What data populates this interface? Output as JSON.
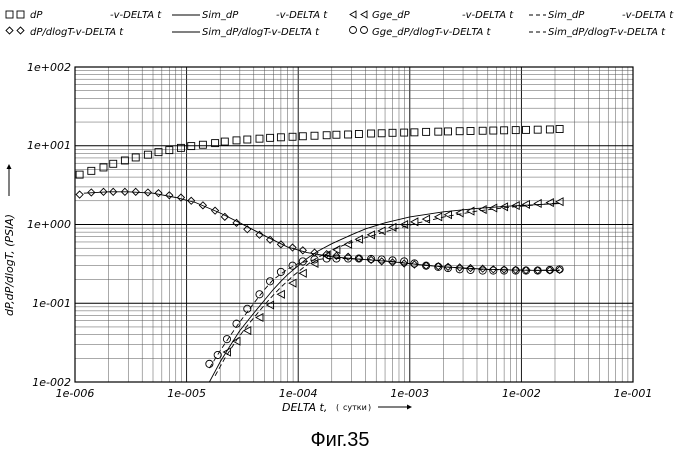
{
  "legend": [
    {
      "label": "dP",
      "rel": "-v-DELTA t"
    },
    {
      "label": "dP/dlogT-v-DELTA t",
      "rel": ""
    },
    {
      "label": "Sim_dP",
      "rel": "-v-DELTA t"
    },
    {
      "label": "Sim_dP/dlogT-v-DELTA t",
      "rel": ""
    },
    {
      "label": "Gge_dP",
      "rel": "-v-DELTA t"
    },
    {
      "label": "Gge_dP/dlogT-v-DELTA t",
      "rel": ""
    },
    {
      "label": "Sim_dP",
      "rel": "-v-DELTA t"
    },
    {
      "label": "Sim_dP/dlogT-v-DELTA t",
      "rel": ""
    }
  ],
  "caption": "Фиг.35",
  "chart_data": {
    "type": "scatter",
    "xscale": "log",
    "yscale": "log",
    "xlim": [
      1e-06,
      0.1
    ],
    "ylim": [
      0.01,
      100.0
    ],
    "grid": true,
    "legend_position": "top",
    "xlabel_prefix": "DELTA t,",
    "xlabel_unit": "сутки",
    "ylabel": "dP,dP/dlogT, (PSIA)",
    "x_ticks": [
      "1e-006",
      "1e-005",
      "1e-004",
      "1e-003",
      "1e-002",
      "1e-001"
    ],
    "y_ticks": [
      "1e-002",
      "1e-001",
      "1e+000",
      "1e+001",
      "1e+002"
    ],
    "series": [
      {
        "name": "dP",
        "marker": "square",
        "role": "measured",
        "x": [
          1.1e-06,
          1.4e-06,
          1.8e-06,
          2.2e-06,
          2.8e-06,
          3.5e-06,
          4.5e-06,
          5.6e-06,
          7e-06,
          8.9e-06,
          1.1e-05,
          1.4e-05,
          1.8e-05,
          2.2e-05,
          2.8e-05,
          3.5e-05,
          4.5e-05,
          5.6e-05,
          7e-05,
          8.9e-05,
          0.00011,
          0.00014,
          0.00018,
          0.00022,
          0.00028,
          0.00035,
          0.00045,
          0.00056,
          0.0007,
          0.00089,
          0.0011,
          0.0014,
          0.0018,
          0.0022,
          0.0028,
          0.0035,
          0.0045,
          0.0056,
          0.007,
          0.0089,
          0.011,
          0.014,
          0.018,
          0.022
        ],
        "y": [
          4.3,
          4.8,
          5.3,
          5.9,
          6.5,
          7.1,
          7.7,
          8.3,
          8.8,
          9.4,
          9.9,
          10.3,
          10.8,
          11.3,
          11.7,
          12.0,
          12.3,
          12.6,
          12.8,
          13.0,
          13.2,
          13.4,
          13.6,
          13.8,
          13.9,
          14.1,
          14.3,
          14.4,
          14.6,
          14.7,
          14.8,
          15.0,
          15.1,
          15.2,
          15.3,
          15.4,
          15.5,
          15.6,
          15.7,
          15.8,
          15.9,
          16.0,
          16.1,
          16.3
        ]
      },
      {
        "name": "dP/dlogT-v-DELTA t",
        "marker": "diamond",
        "role": "measured",
        "x": [
          1.1e-06,
          1.4e-06,
          1.8e-06,
          2.2e-06,
          2.8e-06,
          3.5e-06,
          4.5e-06,
          5.6e-06,
          7e-06,
          8.9e-06,
          1.1e-05,
          1.4e-05,
          1.8e-05,
          2.2e-05,
          2.8e-05,
          3.5e-05,
          4.5e-05,
          5.6e-05,
          7e-05,
          8.9e-05,
          0.00011,
          0.00014,
          0.00018,
          0.00022,
          0.00028,
          0.00035,
          0.00045,
          0.00056,
          0.0007,
          0.00089,
          0.0011,
          0.0014,
          0.0018,
          0.0022,
          0.0028,
          0.0035,
          0.0045,
          0.0056,
          0.007,
          0.0089,
          0.011,
          0.014,
          0.018,
          0.022
        ],
        "y": [
          2.4,
          2.55,
          2.6,
          2.6,
          2.6,
          2.6,
          2.55,
          2.5,
          2.35,
          2.2,
          2.0,
          1.75,
          1.5,
          1.25,
          1.05,
          0.87,
          0.74,
          0.64,
          0.56,
          0.51,
          0.47,
          0.44,
          0.42,
          0.4,
          0.39,
          0.37,
          0.355,
          0.34,
          0.33,
          0.32,
          0.31,
          0.3,
          0.295,
          0.29,
          0.285,
          0.28,
          0.275,
          0.27,
          0.268,
          0.265,
          0.263,
          0.262,
          0.262,
          0.265
        ]
      },
      {
        "name": "Sim_dP",
        "marker": "line",
        "role": "simulated",
        "x": [
          1.6e-05,
          2e-05,
          2.5e-05,
          3e-05,
          4e-05,
          5e-05,
          6e-05,
          7e-05,
          8e-05,
          0.0001,
          0.00012,
          0.00015,
          0.0002,
          0.0003,
          0.0004,
          0.0006,
          0.001,
          0.002,
          0.004,
          0.007,
          0.01,
          0.015,
          0.022
        ],
        "y": [
          0.01,
          0.018,
          0.03,
          0.045,
          0.075,
          0.11,
          0.15,
          0.19,
          0.23,
          0.3,
          0.37,
          0.46,
          0.57,
          0.74,
          0.88,
          1.05,
          1.25,
          1.45,
          1.6,
          1.7,
          1.75,
          1.8,
          1.85
        ]
      },
      {
        "name": "Sim_dP/dlogT-v-DELTA t",
        "marker": "line",
        "role": "simulated",
        "x": [
          1.2e-06,
          2e-06,
          3e-06,
          5e-06,
          8e-06,
          1.2e-05,
          2e-05,
          3e-05,
          5e-05,
          8e-05,
          0.00012,
          0.0002,
          0.0003,
          0.0005,
          0.0008,
          0.0012,
          0.002,
          0.003,
          0.005,
          0.008,
          0.012,
          0.022
        ],
        "y": [
          2.5,
          2.6,
          2.6,
          2.5,
          2.2,
          1.9,
          1.4,
          1.05,
          0.72,
          0.52,
          0.44,
          0.39,
          0.37,
          0.35,
          0.33,
          0.31,
          0.29,
          0.28,
          0.27,
          0.265,
          0.262,
          0.26
        ]
      },
      {
        "name": "Gge_dP",
        "marker": "triangle",
        "role": "measured",
        "x": [
          2.3e-05,
          2.8e-05,
          3.5e-05,
          4.5e-05,
          5.6e-05,
          7e-05,
          8.9e-05,
          0.00011,
          0.00014,
          0.00018,
          0.00022,
          0.00028,
          0.00035,
          0.00045,
          0.00056,
          0.0007,
          0.00089,
          0.0011,
          0.0014,
          0.0018,
          0.0022,
          0.0028,
          0.0035,
          0.0045,
          0.0056,
          0.007,
          0.0089,
          0.011,
          0.014,
          0.018,
          0.022
        ],
        "y": [
          0.024,
          0.033,
          0.045,
          0.066,
          0.095,
          0.13,
          0.18,
          0.24,
          0.32,
          0.4,
          0.48,
          0.56,
          0.65,
          0.74,
          0.83,
          0.92,
          1.0,
          1.08,
          1.17,
          1.25,
          1.33,
          1.4,
          1.48,
          1.55,
          1.62,
          1.68,
          1.74,
          1.8,
          1.85,
          1.9,
          1.95
        ]
      },
      {
        "name": "Gge_dP/dlogT-v-DELTA t",
        "marker": "circle",
        "role": "measured",
        "x": [
          1.6e-05,
          1.9e-05,
          2.3e-05,
          2.8e-05,
          3.5e-05,
          4.5e-05,
          5.6e-05,
          7e-05,
          8.9e-05,
          0.00011,
          0.00014,
          0.00018,
          0.00022,
          0.00028,
          0.00035,
          0.00045,
          0.00056,
          0.0007,
          0.00089,
          0.0011,
          0.0014,
          0.0018,
          0.0022,
          0.0028,
          0.0035,
          0.0045,
          0.0056,
          0.007,
          0.0089,
          0.011,
          0.014,
          0.018,
          0.022
        ],
        "y": [
          0.017,
          0.022,
          0.035,
          0.055,
          0.085,
          0.13,
          0.19,
          0.25,
          0.3,
          0.34,
          0.36,
          0.37,
          0.37,
          0.37,
          0.37,
          0.365,
          0.36,
          0.35,
          0.34,
          0.32,
          0.3,
          0.29,
          0.28,
          0.27,
          0.265,
          0.26,
          0.26,
          0.26,
          0.26,
          0.26,
          0.26,
          0.265,
          0.27
        ]
      },
      {
        "name": "Sim_dP",
        "marker": "dashed",
        "role": "simulated",
        "x": [
          1.8e-05,
          2.2e-05,
          2.8e-05,
          3.5e-05,
          4.5e-05,
          5.6e-05,
          7e-05,
          8.9e-05,
          0.00011,
          0.00014,
          0.00018,
          0.00025,
          0.0004,
          0.0007,
          0.0012,
          0.0022,
          0.004,
          0.007,
          0.012,
          0.022
        ],
        "y": [
          0.012,
          0.02,
          0.034,
          0.052,
          0.08,
          0.115,
          0.16,
          0.22,
          0.28,
          0.36,
          0.44,
          0.54,
          0.68,
          0.86,
          1.05,
          1.28,
          1.48,
          1.63,
          1.75,
          1.88
        ]
      },
      {
        "name": "Sim_dP/dlogT-v-DELTA t",
        "marker": "dashed",
        "role": "simulated",
        "x": [
          1.6e-05,
          2e-05,
          2.5e-05,
          3e-05,
          4e-05,
          5e-05,
          6e-05,
          8e-05,
          0.0001,
          0.00013,
          0.00018,
          0.00025,
          0.0004,
          0.0007,
          0.0012,
          0.002,
          0.004,
          0.008,
          0.014,
          0.022
        ],
        "y": [
          0.015,
          0.025,
          0.04,
          0.058,
          0.1,
          0.15,
          0.2,
          0.27,
          0.32,
          0.35,
          0.37,
          0.37,
          0.36,
          0.34,
          0.31,
          0.29,
          0.27,
          0.265,
          0.262,
          0.265
        ]
      }
    ]
  }
}
